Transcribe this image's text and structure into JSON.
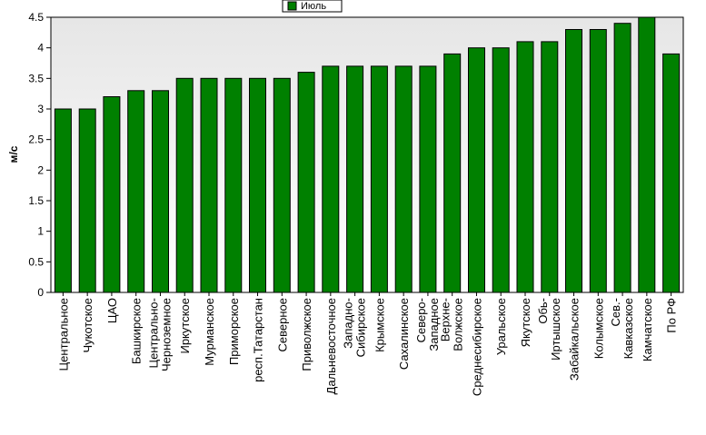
{
  "chart_data": {
    "type": "bar",
    "ylabel": "м/с",
    "ylim": [
      0,
      4.5
    ],
    "yticks": [
      "0",
      "0.5",
      "1",
      "1.5",
      "2",
      "2.5",
      "3",
      "3.5",
      "4",
      "4.5"
    ],
    "grid": false,
    "legend_position": "top-center",
    "categories": [
      [
        "Центральное"
      ],
      [
        "Чукотское"
      ],
      [
        "ЦАО"
      ],
      [
        "Башкирское"
      ],
      [
        "Центрально-",
        "Черноземное"
      ],
      [
        "Иркутское"
      ],
      [
        "Мурманское"
      ],
      [
        "Приморское"
      ],
      [
        "респ.Татарстан"
      ],
      [
        "Северное"
      ],
      [
        "Приволжское"
      ],
      [
        "Дальневосточное"
      ],
      [
        "Западно-",
        "Сибирское"
      ],
      [
        "Крымское"
      ],
      [
        "Сахалинское"
      ],
      [
        "Северо-",
        "Западное"
      ],
      [
        "Верхне-",
        "Волжское"
      ],
      [
        "Среднесибирское"
      ],
      [
        "Уральское"
      ],
      [
        "Якутское"
      ],
      [
        "Обь-",
        "Иртышское"
      ],
      [
        "Забайкальское"
      ],
      [
        "Колымское"
      ],
      [
        "Сев.-",
        "Кавказское"
      ],
      [
        "Камчатское"
      ],
      [
        "По РФ"
      ]
    ],
    "series": [
      {
        "name": "Июль",
        "color": "#008000",
        "values": [
          3.0,
          3.0,
          3.2,
          3.3,
          3.3,
          3.5,
          3.5,
          3.5,
          3.5,
          3.5,
          3.6,
          3.7,
          3.7,
          3.7,
          3.7,
          3.7,
          3.9,
          4.0,
          4.0,
          4.1,
          4.1,
          4.3,
          4.3,
          4.4,
          4.5,
          3.9
        ]
      }
    ]
  }
}
